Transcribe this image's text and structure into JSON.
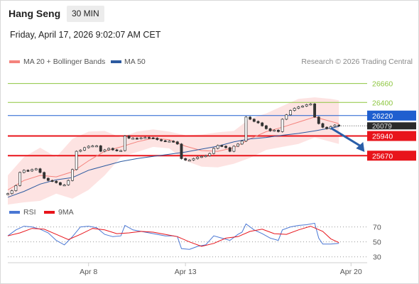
{
  "header": {
    "title": "Hang Seng",
    "timeframe": "30 MIN"
  },
  "datetime": "Friday, April 17, 2026 9:02:07 AM CET",
  "legend": {
    "ma20": {
      "label": "MA 20 + Bollinger Bands",
      "color": "#f4837d"
    },
    "ma50": {
      "label": "MA 50",
      "color": "#2c5aa0"
    },
    "credit": "Research © 2026 Trading Central"
  },
  "rsi_legend": {
    "rsi": {
      "label": "RSI",
      "color": "#4a77d4"
    },
    "ma9": {
      "label": "9MA",
      "color": "#e8141b"
    }
  },
  "chart_data": [
    {
      "type": "line",
      "title": "Hang Seng 30 MIN",
      "ylim": [
        25030,
        26880
      ],
      "x_tick_labels": [
        "Apr 8",
        "Apr 13",
        "Apr 20"
      ],
      "levels": [
        {
          "label": "26660",
          "value": 26660,
          "style": "resistance",
          "color": "#8dc63f"
        },
        {
          "label": "26400",
          "value": 26400,
          "style": "resistance",
          "color": "#8dc63f"
        },
        {
          "label": "26220",
          "value": 26220,
          "style": "pivot",
          "color": "#1f5fcf"
        },
        {
          "label": "25940",
          "value": 25940,
          "style": "support",
          "color": "#e8141b"
        },
        {
          "label": "25670",
          "value": 25670,
          "style": "support",
          "color": "#e8141b"
        }
      ],
      "last_price": {
        "label": "26079",
        "value": 26079
      },
      "price_series": [
        [
          0,
          25150
        ],
        [
          1,
          25190
        ],
        [
          2,
          25260
        ],
        [
          3,
          25440
        ],
        [
          4,
          25470
        ],
        [
          5,
          25460
        ],
        [
          6,
          25480
        ],
        [
          7,
          25490
        ],
        [
          8,
          25440
        ],
        [
          9,
          25360
        ],
        [
          10,
          25330
        ],
        [
          11,
          25320
        ],
        [
          12,
          25300
        ],
        [
          13,
          25270
        ],
        [
          14,
          25270
        ],
        [
          15,
          25330
        ],
        [
          16,
          25480
        ],
        [
          17,
          25730
        ],
        [
          18,
          25745
        ],
        [
          19,
          25780
        ],
        [
          20,
          25800
        ],
        [
          21,
          25805
        ],
        [
          22,
          25805
        ],
        [
          23,
          25730
        ],
        [
          24,
          25750
        ],
        [
          25,
          25770
        ],
        [
          26,
          25750
        ],
        [
          27,
          25740
        ],
        [
          28,
          25740
        ],
        [
          29,
          25940
        ],
        [
          30,
          25910
        ],
        [
          31,
          25910
        ],
        [
          32,
          25905
        ],
        [
          33,
          25915
        ],
        [
          34,
          25920
        ],
        [
          35,
          25915
        ],
        [
          36,
          25910
        ],
        [
          37,
          25890
        ],
        [
          38,
          25875
        ],
        [
          39,
          25870
        ],
        [
          40,
          25870
        ],
        [
          41,
          25860
        ],
        [
          42,
          25830
        ],
        [
          43,
          25630
        ],
        [
          44,
          25610
        ],
        [
          45,
          25610
        ],
        [
          46,
          25630
        ],
        [
          47,
          25650
        ],
        [
          48,
          25660
        ],
        [
          49,
          25670
        ],
        [
          50,
          25700
        ],
        [
          51,
          25770
        ],
        [
          52,
          25810
        ],
        [
          53,
          25800
        ],
        [
          54,
          25780
        ],
        [
          55,
          25730
        ],
        [
          56,
          25800
        ],
        [
          57,
          25830
        ],
        [
          58,
          25870
        ],
        [
          59,
          26200
        ],
        [
          60,
          26170
        ],
        [
          61,
          26140
        ],
        [
          62,
          26120
        ],
        [
          63,
          26080
        ],
        [
          64,
          26040
        ],
        [
          65,
          26010
        ],
        [
          66,
          26020
        ],
        [
          67,
          26000
        ],
        [
          68,
          26170
        ],
        [
          69,
          26230
        ],
        [
          70,
          26290
        ],
        [
          71,
          26320
        ],
        [
          72,
          26340
        ],
        [
          73,
          26350
        ],
        [
          74,
          26370
        ],
        [
          75,
          26380
        ],
        [
          76,
          26200
        ],
        [
          77,
          26110
        ],
        [
          78,
          26060
        ],
        [
          79,
          26040
        ],
        [
          80,
          26070
        ],
        [
          81,
          26090
        ],
        [
          82,
          26079
        ]
      ],
      "ma50_series": [
        [
          0,
          25100
        ],
        [
          4,
          25180
        ],
        [
          8,
          25280
        ],
        [
          12,
          25340
        ],
        [
          16,
          25370
        ],
        [
          20,
          25470
        ],
        [
          24,
          25530
        ],
        [
          28,
          25590
        ],
        [
          32,
          25630
        ],
        [
          36,
          25660
        ],
        [
          40,
          25690
        ],
        [
          44,
          25720
        ],
        [
          48,
          25760
        ],
        [
          52,
          25800
        ],
        [
          56,
          25860
        ],
        [
          60,
          25900
        ],
        [
          64,
          25920
        ],
        [
          68,
          25950
        ],
        [
          72,
          25975
        ],
        [
          76,
          26010
        ],
        [
          80,
          26050
        ],
        [
          82,
          26070
        ]
      ],
      "ma20_series": [
        [
          0,
          25200
        ],
        [
          4,
          25330
        ],
        [
          8,
          25400
        ],
        [
          12,
          25380
        ],
        [
          16,
          25450
        ],
        [
          20,
          25600
        ],
        [
          24,
          25730
        ],
        [
          28,
          25790
        ],
        [
          32,
          25860
        ],
        [
          36,
          25910
        ],
        [
          40,
          25890
        ],
        [
          44,
          25800
        ],
        [
          48,
          25740
        ],
        [
          52,
          25730
        ],
        [
          56,
          25780
        ],
        [
          60,
          25900
        ],
        [
          64,
          26000
        ],
        [
          68,
          26060
        ],
        [
          72,
          26130
        ],
        [
          76,
          26200
        ],
        [
          80,
          26140
        ],
        [
          82,
          26110
        ]
      ],
      "bb_upper": [
        [
          0,
          25400
        ],
        [
          4,
          25650
        ],
        [
          8,
          25780
        ],
        [
          12,
          25650
        ],
        [
          16,
          25900
        ],
        [
          20,
          26000
        ],
        [
          24,
          26010
        ],
        [
          28,
          25920
        ],
        [
          32,
          26000
        ],
        [
          36,
          26030
        ],
        [
          40,
          26000
        ],
        [
          44,
          25950
        ],
        [
          48,
          25960
        ],
        [
          52,
          25990
        ],
        [
          56,
          26010
        ],
        [
          60,
          26180
        ],
        [
          64,
          26250
        ],
        [
          68,
          26350
        ],
        [
          72,
          26450
        ],
        [
          76,
          26470
        ],
        [
          80,
          26450
        ],
        [
          82,
          26430
        ]
      ],
      "bb_lower": [
        [
          0,
          25000
        ],
        [
          4,
          25030
        ],
        [
          8,
          25050
        ],
        [
          12,
          25150
        ],
        [
          16,
          25080
        ],
        [
          20,
          25200
        ],
        [
          24,
          25400
        ],
        [
          28,
          25650
        ],
        [
          32,
          25720
        ],
        [
          36,
          25790
        ],
        [
          40,
          25770
        ],
        [
          44,
          25600
        ],
        [
          48,
          25520
        ],
        [
          52,
          25510
        ],
        [
          56,
          25560
        ],
        [
          60,
          25640
        ],
        [
          64,
          25750
        ],
        [
          68,
          25790
        ],
        [
          72,
          25830
        ],
        [
          76,
          25920
        ],
        [
          80,
          25860
        ],
        [
          82,
          25830
        ]
      ],
      "forecast_arrow": {
        "from": [
          80,
          26050
        ],
        "to": [
          88,
          25750
        ],
        "direction": "down"
      }
    },
    {
      "type": "line",
      "title": "RSI",
      "ylim": [
        24,
        82
      ],
      "y_ticks": [
        70,
        50,
        30
      ],
      "rsi_series": [
        [
          0,
          58
        ],
        [
          2,
          66
        ],
        [
          4,
          71
        ],
        [
          6,
          70
        ],
        [
          8,
          67
        ],
        [
          10,
          62
        ],
        [
          12,
          52
        ],
        [
          14,
          46
        ],
        [
          16,
          57
        ],
        [
          18,
          70
        ],
        [
          20,
          71
        ],
        [
          22,
          69
        ],
        [
          24,
          60
        ],
        [
          26,
          57
        ],
        [
          28,
          58
        ],
        [
          29,
          72
        ],
        [
          31,
          66
        ],
        [
          33,
          64
        ],
        [
          35,
          62
        ],
        [
          37,
          60
        ],
        [
          39,
          58
        ],
        [
          41,
          58
        ],
        [
          42,
          57
        ],
        [
          43,
          41
        ],
        [
          45,
          40
        ],
        [
          47,
          44
        ],
        [
          49,
          46
        ],
        [
          51,
          58
        ],
        [
          53,
          55
        ],
        [
          55,
          52
        ],
        [
          57,
          60
        ],
        [
          58,
          63
        ],
        [
          59,
          74
        ],
        [
          61,
          66
        ],
        [
          63,
          61
        ],
        [
          65,
          55
        ],
        [
          67,
          52
        ],
        [
          68,
          66
        ],
        [
          70,
          70
        ],
        [
          72,
          72
        ],
        [
          74,
          73
        ],
        [
          76,
          75
        ],
        [
          77,
          55
        ],
        [
          78,
          47
        ],
        [
          80,
          47
        ],
        [
          82,
          48
        ]
      ],
      "ma9_series": [
        [
          0,
          58
        ],
        [
          3,
          62
        ],
        [
          6,
          68
        ],
        [
          9,
          67
        ],
        [
          12,
          60
        ],
        [
          15,
          53
        ],
        [
          18,
          60
        ],
        [
          21,
          68
        ],
        [
          24,
          66
        ],
        [
          27,
          61
        ],
        [
          30,
          62
        ],
        [
          33,
          64
        ],
        [
          36,
          63
        ],
        [
          39,
          60
        ],
        [
          42,
          57
        ],
        [
          45,
          50
        ],
        [
          48,
          44
        ],
        [
          51,
          48
        ],
        [
          54,
          55
        ],
        [
          57,
          57
        ],
        [
          60,
          64
        ],
        [
          63,
          67
        ],
        [
          66,
          61
        ],
        [
          69,
          60
        ],
        [
          72,
          66
        ],
        [
          75,
          71
        ],
        [
          78,
          64
        ],
        [
          80,
          54
        ],
        [
          82,
          49
        ]
      ]
    }
  ]
}
